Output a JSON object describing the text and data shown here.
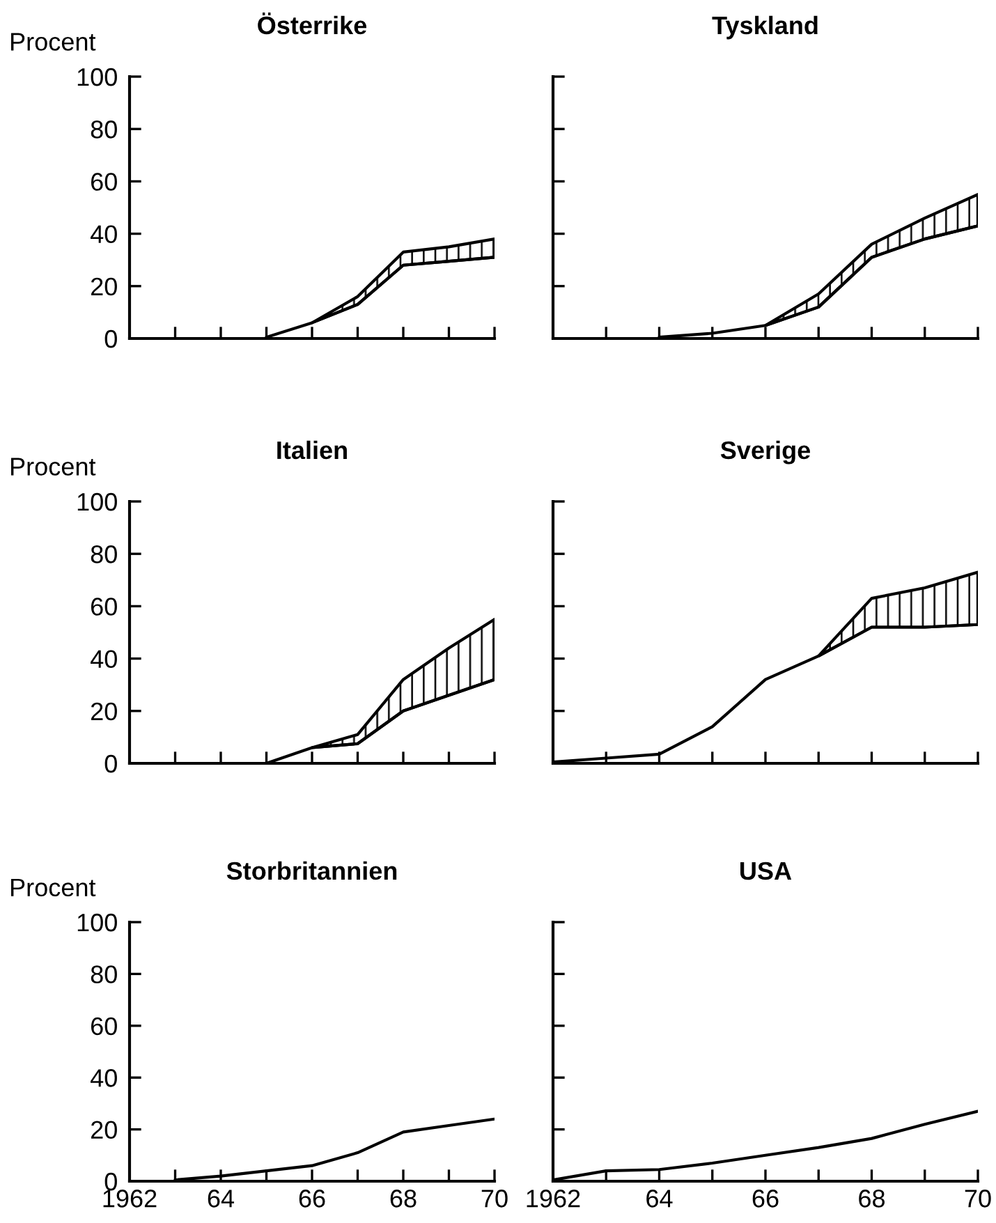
{
  "chart_data": [
    {
      "type": "line",
      "title": "Österrike",
      "ylabel": "Procent",
      "series": [
        {
          "color": "#000000",
          "x": [
            1965,
            1966,
            1967,
            1968,
            1969,
            1970
          ],
          "values": [
            0.5,
            6,
            13,
            28,
            29.5,
            31
          ],
          "lower": [
            null,
            6,
            13,
            28,
            29.5,
            31
          ],
          "upper": [
            null,
            6,
            16,
            33,
            35,
            38
          ]
        }
      ],
      "xlim": [
        1962,
        1970
      ],
      "ylim": [
        0,
        100
      ],
      "yticks": [
        0,
        20,
        40,
        60,
        80,
        100
      ],
      "xticks": [
        {
          "value": 1962,
          "label": null
        },
        {
          "value": 1963,
          "label": null
        },
        {
          "value": 1964,
          "label": null
        },
        {
          "value": 1965,
          "label": null
        },
        {
          "value": 1966,
          "label": null
        },
        {
          "value": 1967,
          "label": null
        },
        {
          "value": 1968,
          "label": null
        },
        {
          "value": 1969,
          "label": null
        },
        {
          "value": 1970,
          "label": null
        }
      ],
      "tick_labels": "y"
    },
    {
      "type": "line",
      "title": "Tyskland",
      "series": [
        {
          "color": "#000000",
          "x": [
            1964,
            1965,
            1966,
            1967,
            1968,
            1969,
            1970
          ],
          "values": [
            0.5,
            2,
            5,
            12,
            31,
            38,
            43
          ],
          "lower": [
            null,
            null,
            5,
            12,
            31,
            38,
            43
          ],
          "upper": [
            null,
            null,
            5,
            17,
            36,
            46,
            55
          ]
        }
      ],
      "xlim": [
        1962,
        1970
      ],
      "ylim": [
        0,
        100
      ],
      "yticks": [
        0,
        20,
        40,
        60,
        80,
        100
      ],
      "xticks": [
        {
          "value": 1962,
          "label": null
        },
        {
          "value": 1963,
          "label": null
        },
        {
          "value": 1964,
          "label": null
        },
        {
          "value": 1965,
          "label": null
        },
        {
          "value": 1966,
          "label": null
        },
        {
          "value": 1967,
          "label": null
        },
        {
          "value": 1968,
          "label": null
        },
        {
          "value": 1969,
          "label": null
        },
        {
          "value": 1970,
          "label": null
        }
      ],
      "tick_labels": false
    },
    {
      "type": "line",
      "title": "Italien",
      "ylabel": "Procent",
      "series": [
        {
          "color": "#000000",
          "x": [
            1965,
            1966,
            1967,
            1968,
            1969,
            1970
          ],
          "values": [
            0,
            6,
            7.5,
            20,
            26,
            32
          ],
          "lower": [
            null,
            6,
            7.5,
            20,
            26,
            32
          ],
          "upper": [
            null,
            6,
            11,
            32,
            44,
            55
          ]
        }
      ],
      "xlim": [
        1962,
        1970
      ],
      "ylim": [
        0,
        100
      ],
      "yticks": [
        0,
        20,
        40,
        60,
        80,
        100
      ],
      "xticks": [
        {
          "value": 1962,
          "label": null
        },
        {
          "value": 1963,
          "label": null
        },
        {
          "value": 1964,
          "label": null
        },
        {
          "value": 1965,
          "label": null
        },
        {
          "value": 1966,
          "label": null
        },
        {
          "value": 1967,
          "label": null
        },
        {
          "value": 1968,
          "label": null
        },
        {
          "value": 1969,
          "label": null
        },
        {
          "value": 1970,
          "label": null
        }
      ],
      "tick_labels": "y"
    },
    {
      "type": "line",
      "title": "Sverige",
      "series": [
        {
          "color": "#000000",
          "x": [
            1962,
            1963,
            1964,
            1965,
            1966,
            1967,
            1968,
            1969,
            1970
          ],
          "values": [
            0.5,
            2,
            3.5,
            14,
            32,
            41,
            52,
            52,
            53
          ],
          "lower": [
            null,
            null,
            null,
            null,
            null,
            41,
            52,
            52,
            53
          ],
          "upper": [
            null,
            null,
            null,
            null,
            null,
            41,
            63,
            67,
            73
          ]
        }
      ],
      "xlim": [
        1962,
        1970
      ],
      "ylim": [
        0,
        100
      ],
      "yticks": [
        0,
        20,
        40,
        60,
        80,
        100
      ],
      "xticks": [
        {
          "value": 1962,
          "label": null
        },
        {
          "value": 1963,
          "label": null
        },
        {
          "value": 1964,
          "label": null
        },
        {
          "value": 1965,
          "label": null
        },
        {
          "value": 1966,
          "label": null
        },
        {
          "value": 1967,
          "label": null
        },
        {
          "value": 1968,
          "label": null
        },
        {
          "value": 1969,
          "label": null
        },
        {
          "value": 1970,
          "label": null
        }
      ],
      "tick_labels": false
    },
    {
      "type": "line",
      "title": "Storbritannien",
      "ylabel": "Procent",
      "series": [
        {
          "color": "#000000",
          "x": [
            1963,
            1964,
            1965,
            1966,
            1967,
            1968,
            1969,
            1970
          ],
          "values": [
            0.5,
            2,
            4,
            6,
            11,
            19,
            21.5,
            24
          ]
        }
      ],
      "xlim": [
        1962,
        1970
      ],
      "ylim": [
        0,
        100
      ],
      "yticks": [
        0,
        20,
        40,
        60,
        80,
        100
      ],
      "xticks": [
        {
          "value": 1962,
          "label": "1962"
        },
        {
          "value": 1963,
          "label": null
        },
        {
          "value": 1964,
          "label": "64"
        },
        {
          "value": 1965,
          "label": null
        },
        {
          "value": 1966,
          "label": "66"
        },
        {
          "value": 1967,
          "label": null
        },
        {
          "value": 1968,
          "label": "68"
        },
        {
          "value": 1969,
          "label": null
        },
        {
          "value": 1970,
          "label": "70"
        }
      ]
    },
    {
      "type": "line",
      "title": "USA",
      "series": [
        {
          "color": "#000000",
          "x": [
            1962,
            1963,
            1964,
            1965,
            1966,
            1967,
            1968,
            1969,
            1970
          ],
          "values": [
            0.5,
            4,
            4.5,
            7,
            10,
            13,
            16.5,
            22,
            27
          ]
        }
      ],
      "xlim": [
        1962,
        1970
      ],
      "ylim": [
        0,
        100
      ],
      "yticks": [
        0,
        20,
        40,
        60,
        80,
        100
      ],
      "xticks": [
        {
          "value": 1962,
          "label": "1962"
        },
        {
          "value": 1963,
          "label": null
        },
        {
          "value": 1964,
          "label": "64"
        },
        {
          "value": 1965,
          "label": null
        },
        {
          "value": 1966,
          "label": "66"
        },
        {
          "value": 1967,
          "label": null
        },
        {
          "value": 1968,
          "label": "68"
        },
        {
          "value": 1969,
          "label": null
        },
        {
          "value": 1970,
          "label": "70"
        }
      ],
      "tick_labels": "x"
    }
  ]
}
